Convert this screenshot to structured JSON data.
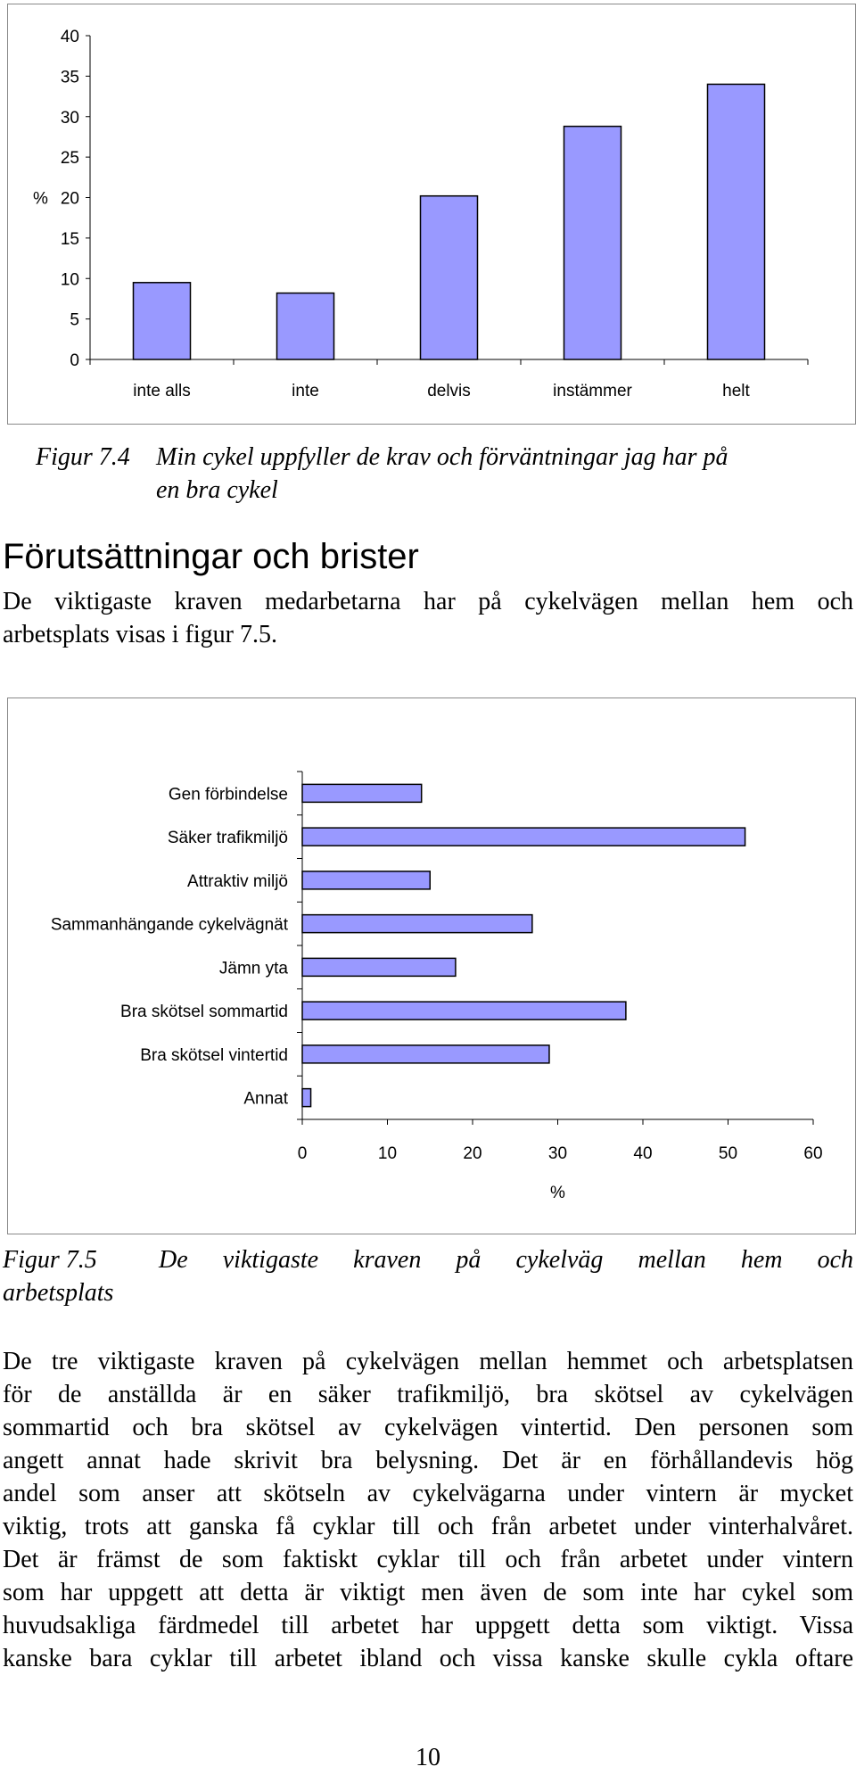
{
  "chart1": {
    "y_axis_label": "%",
    "caption_num": "Figur 7.4",
    "caption_lines": [
      "Min cykel uppfyller de krav och förväntningar jag har på",
      "en bra cykel"
    ]
  },
  "section": {
    "heading": "Förutsättningar och brister",
    "intro_lines": [
      "De viktigaste kraven medarbetarna har på cykelvägen mellan hem och",
      "arbetsplats visas i figur 7.5."
    ]
  },
  "chart2": {
    "x_axis_label": "%",
    "caption_num": "Figur 7.5",
    "caption_rest": "De viktigaste kraven på cykelväg mellan hem och",
    "caption_line2": "arbetsplats"
  },
  "body_lines": [
    "De tre viktigaste kraven på cykelvägen mellan hemmet och arbetsplatsen",
    "för de anställda är en säker trafikmiljö, bra skötsel av cykelvägen",
    "sommartid och bra skötsel av cykelvägen vintertid. Den personen som",
    "angett annat hade skrivit bra belysning. Det är en förhållandevis hög",
    "andel som anser att skötseln av cykelvägarna under vintern är mycket",
    "viktig, trots att ganska få cyklar till och från arbetet under vinterhalvåret.",
    "Det är främst de som faktiskt cyklar till och från arbetet under vintern",
    "som har uppgett att detta är viktigt men även de som inte har cykel som",
    "huvudsakliga färdmedel till arbetet har uppgett detta som viktigt. Vissa",
    "kanske bara cyklar till arbetet ibland och vissa kanske skulle cykla oftare"
  ],
  "page_number": "10",
  "chart_data": [
    {
      "type": "bar",
      "categories": [
        "inte alls",
        "inte",
        "delvis",
        "instämmer",
        "helt"
      ],
      "values": [
        9.5,
        8.2,
        20.2,
        28.8,
        34.0
      ],
      "ylabel": "%",
      "xlabel": "",
      "ylim": [
        0,
        40
      ],
      "yticks": [
        0,
        5,
        10,
        15,
        20,
        25,
        30,
        35,
        40
      ],
      "grid": false,
      "bar_color": "#9999ff"
    },
    {
      "type": "bar",
      "orientation": "horizontal",
      "categories": [
        "Gen förbindelse",
        "Säker trafikmiljö",
        "Attraktiv miljö",
        "Sammanhängande cykelvägnät",
        "Jämn yta",
        "Bra skötsel sommartid",
        "Bra skötsel vintertid",
        "Annat"
      ],
      "values": [
        14,
        52,
        15,
        27,
        18,
        38,
        29,
        1
      ],
      "xlabel": "%",
      "ylabel": "",
      "xlim": [
        0,
        60
      ],
      "xticks": [
        0,
        10,
        20,
        30,
        40,
        50,
        60
      ],
      "grid": false,
      "bar_color": "#9999ff"
    }
  ]
}
